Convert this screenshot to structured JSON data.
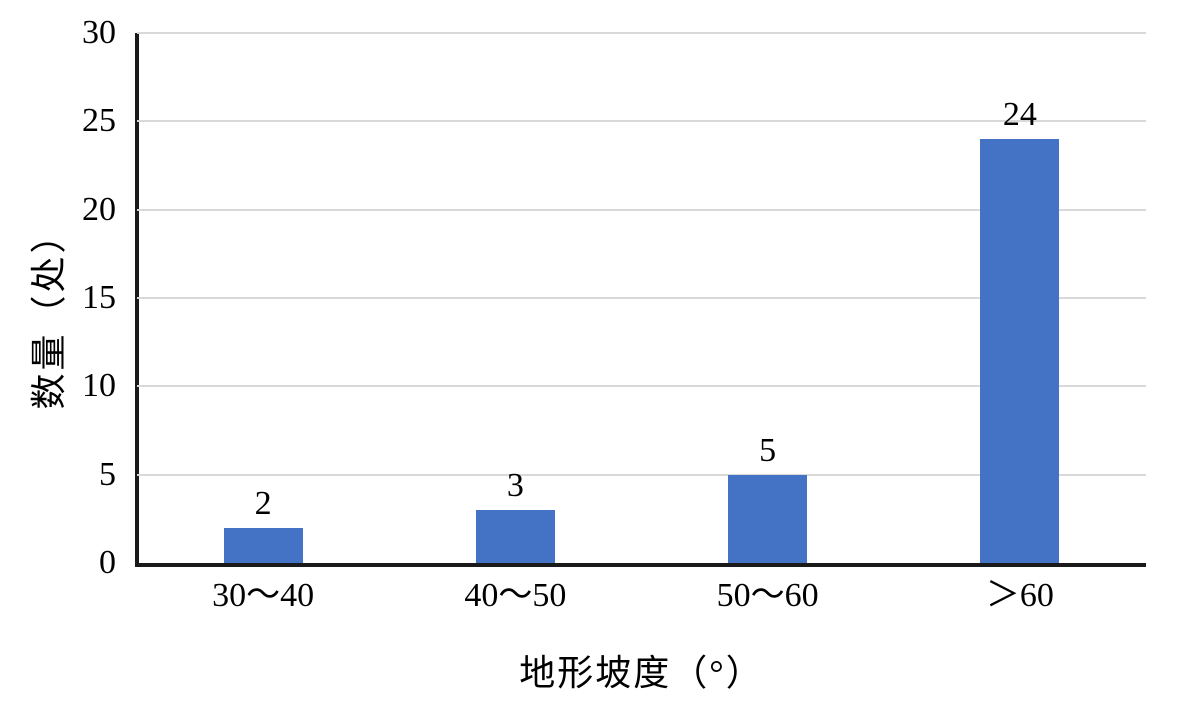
{
  "chart_data": {
    "type": "bar",
    "title": "",
    "categories": [
      "30～40",
      "40～50",
      "50～60",
      "＞60"
    ],
    "values": [
      2,
      3,
      5,
      24
    ],
    "data_labels": [
      "2",
      "3",
      "5",
      "24"
    ],
    "xlabel": "地形坡度（°）",
    "ylabel": "数量（处）",
    "ylim": [
      0,
      30
    ],
    "yticks": [
      0,
      5,
      10,
      15,
      20,
      25,
      30
    ],
    "ytick_interval": 5,
    "grid": true,
    "gridlines": "horizontal",
    "legend": false,
    "bar_color": "#4472C4",
    "gridline_color": "#D9D9D9",
    "axis_color": "#1A1A1A",
    "text_color": "#000000"
  }
}
